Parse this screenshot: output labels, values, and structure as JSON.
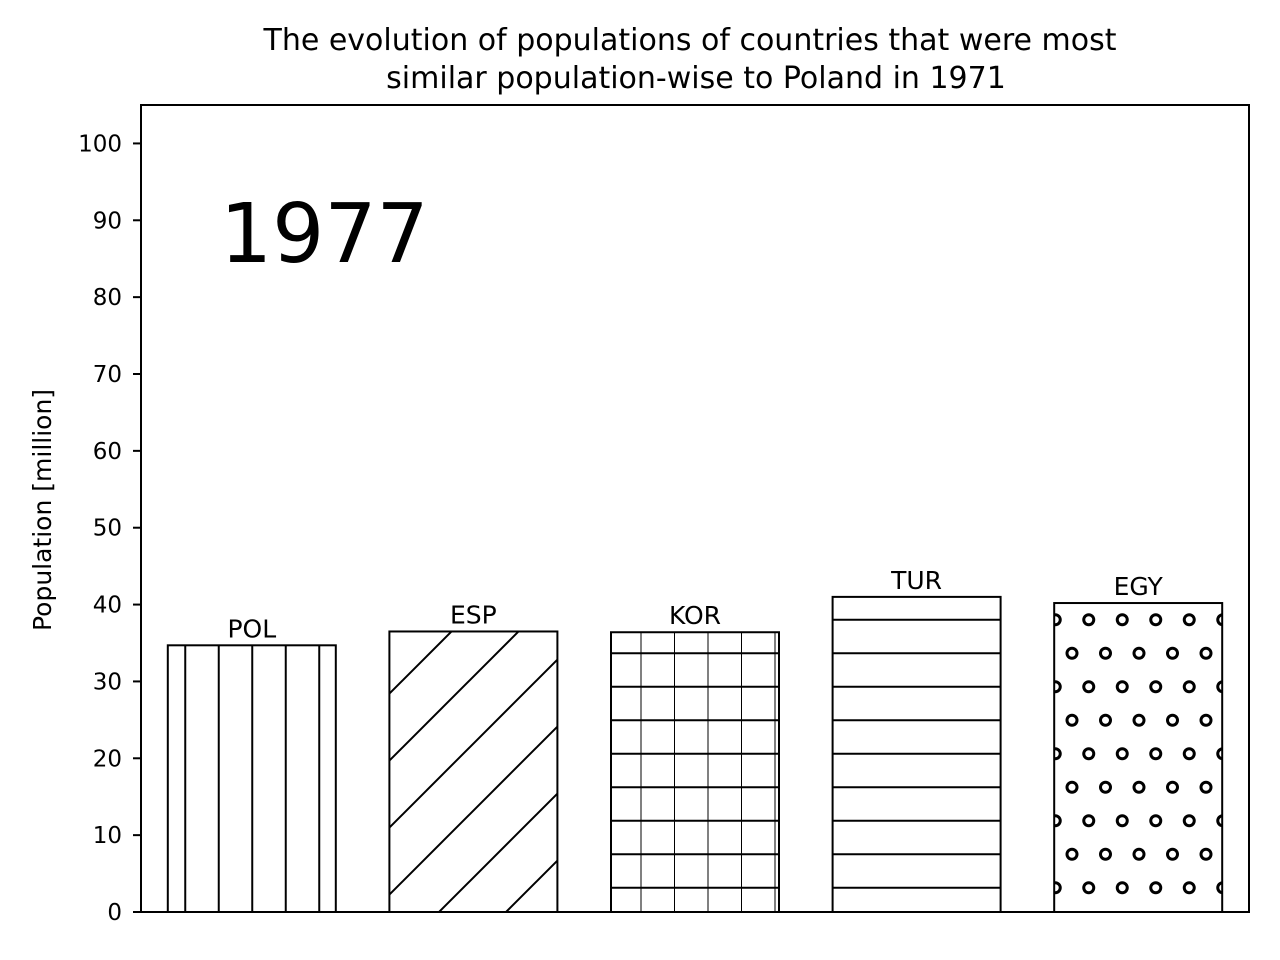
{
  "chart_data": {
    "type": "bar",
    "title_lines": [
      "The evolution of populations of countries that were most",
      "similar population-wise to Poland in 1971"
    ],
    "xlabel": "",
    "ylabel": "Population [million]",
    "year": "1977",
    "ylim": [
      0,
      105
    ],
    "yticks": [
      0,
      10,
      20,
      30,
      40,
      50,
      60,
      70,
      80,
      90,
      100
    ],
    "grid": false,
    "categories": [
      "POL",
      "ESP",
      "KOR",
      "TUR",
      "EGY"
    ],
    "values": [
      34.7,
      36.5,
      36.4,
      41.0,
      40.2
    ],
    "hatches": [
      "vertical",
      "diagonal",
      "grid",
      "horizontal",
      "circles"
    ],
    "colors": {
      "bar_fill": "#ffffff",
      "bar_edge": "#000000",
      "axes": "#000000"
    }
  }
}
